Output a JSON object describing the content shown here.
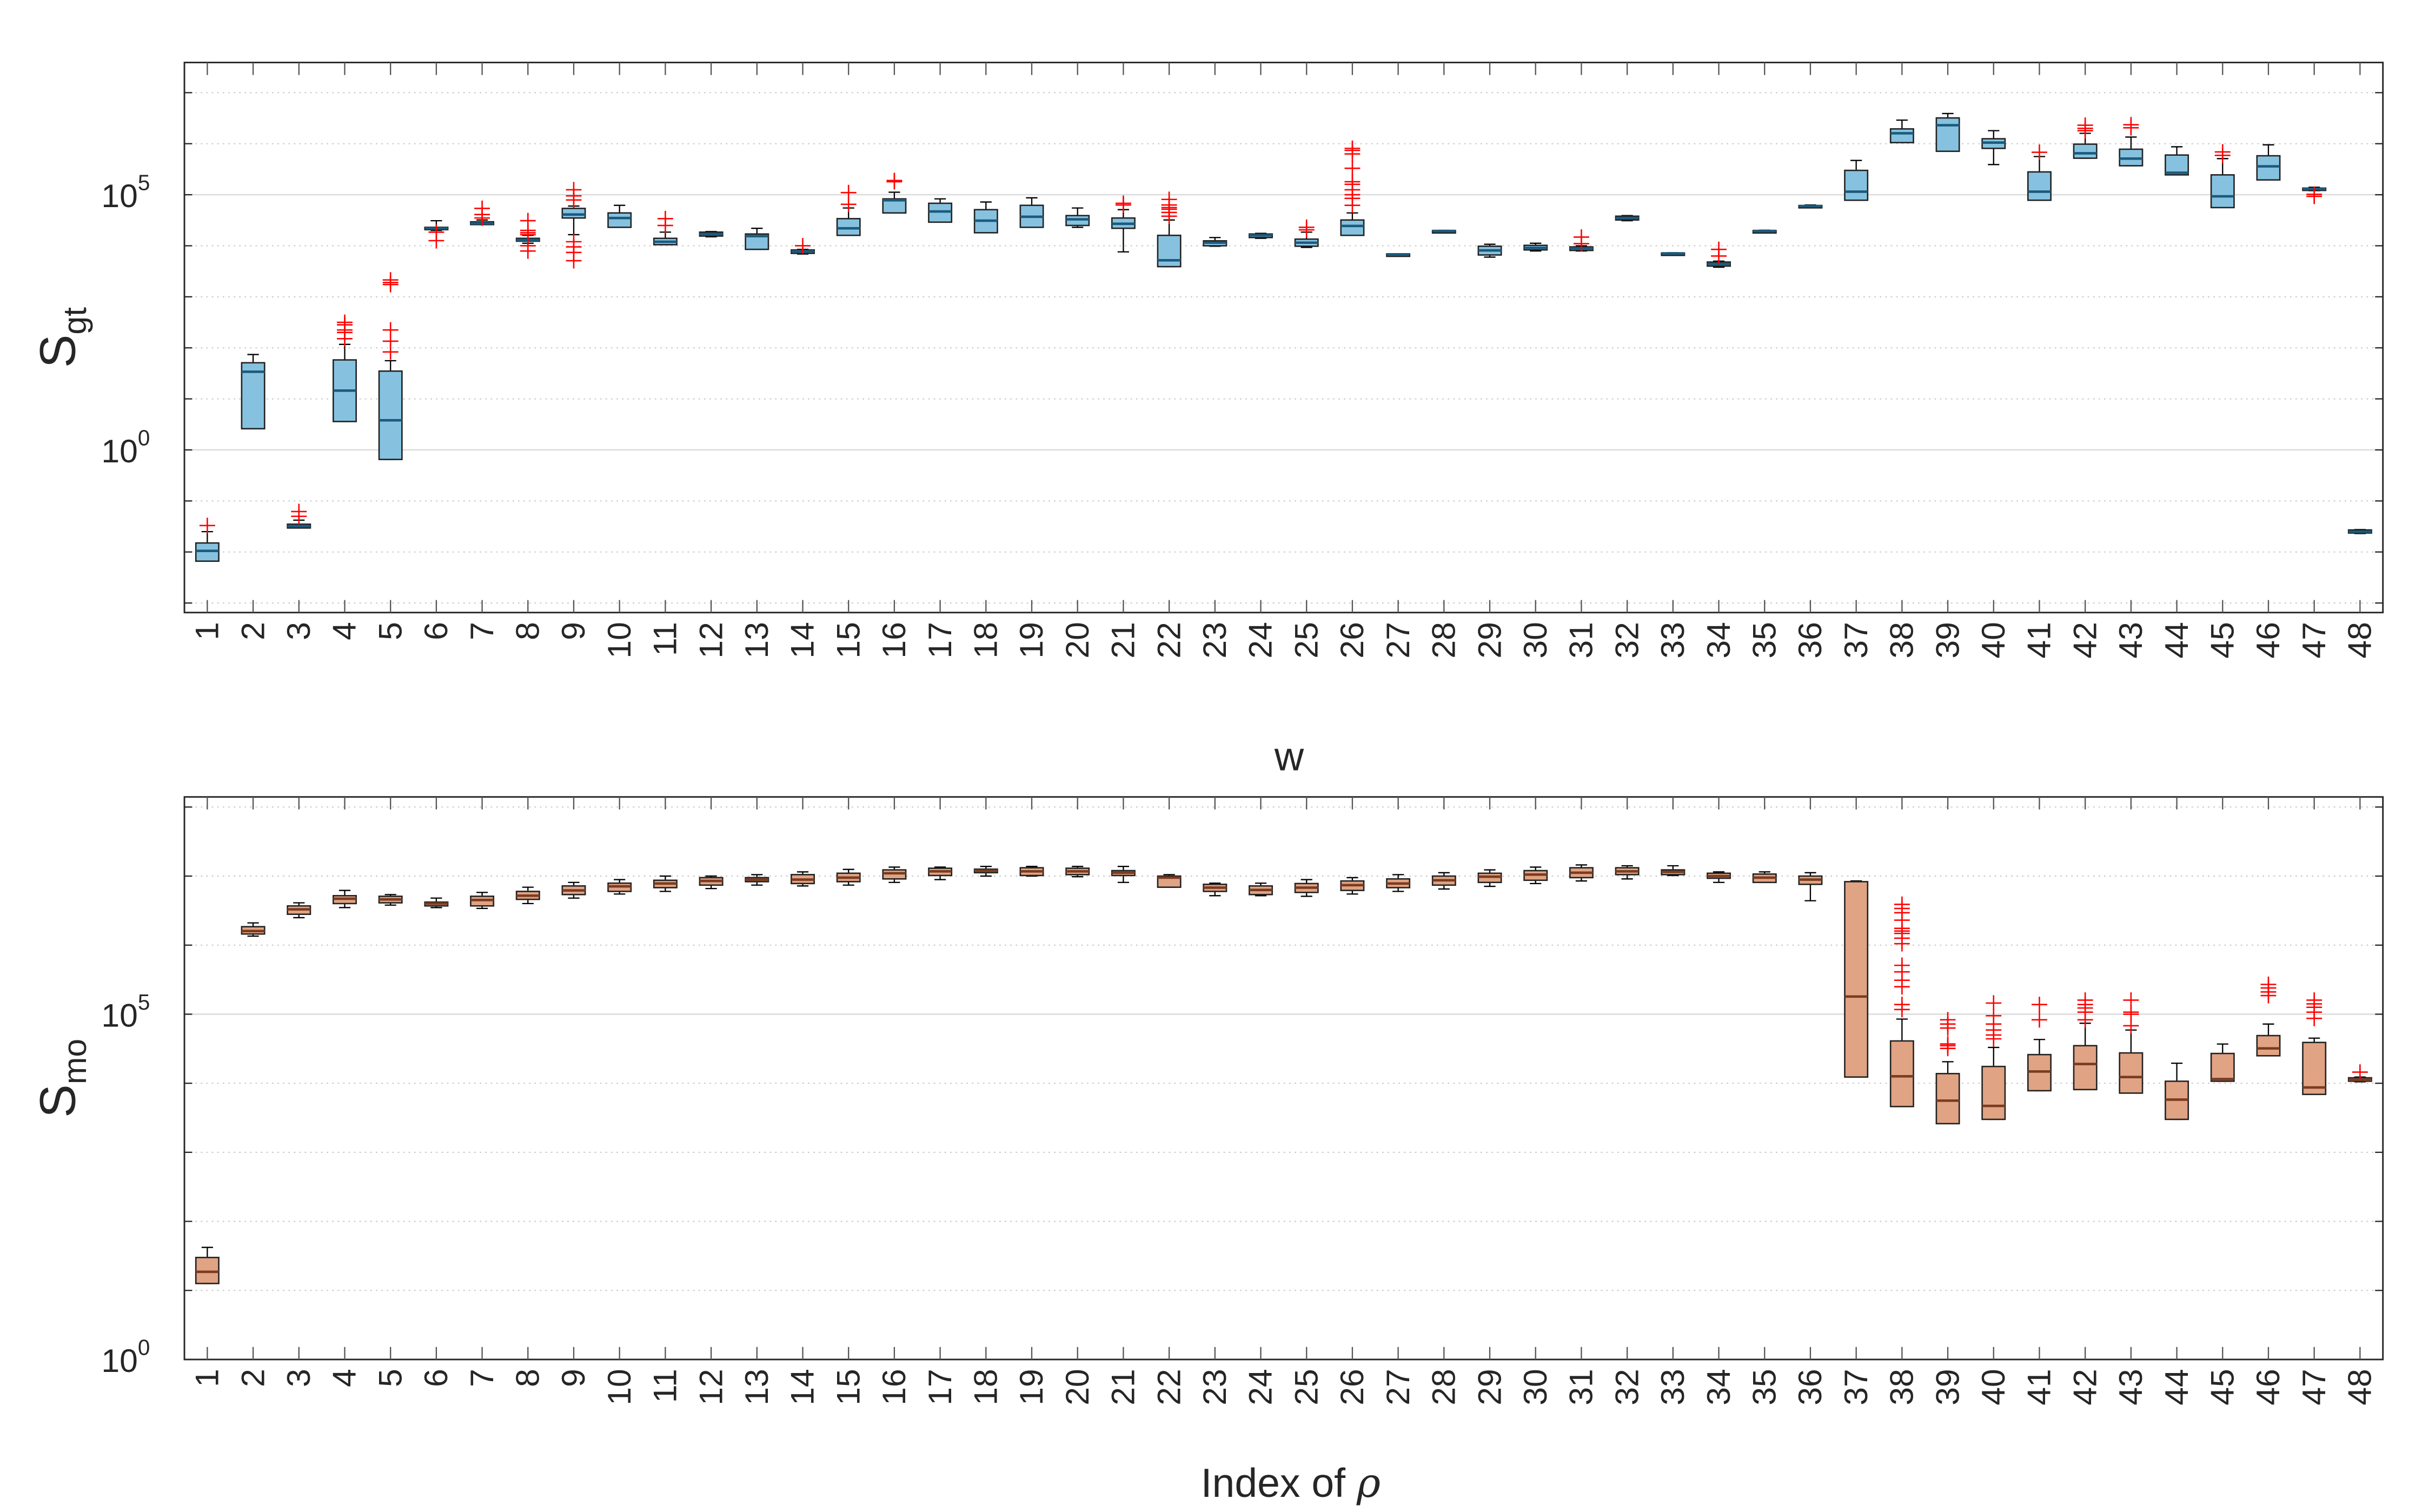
{
  "chart_data": [
    {
      "type": "box",
      "ylabel": {
        "main": "S",
        "sub": "gt"
      },
      "xlabel": {
        "main": "w",
        "italic": ""
      },
      "yscale": "log",
      "ylim": [
        0.00065,
        39000000.0
      ],
      "grid": "every decade; solid at labeled ticks, dotted elsewhere",
      "yticks": [
        {
          "value": 100000.0,
          "base": "10",
          "exp": "5"
        },
        {
          "value": 1,
          "base": "10",
          "exp": "0"
        }
      ],
      "colors": {
        "box": "#86c2e0",
        "median": "#1b5a7c",
        "outlier": "#ff0000",
        "whisker": "#000000"
      },
      "categories": [
        "1",
        "2",
        "3",
        "4",
        "5",
        "6",
        "7",
        "8",
        "9",
        "10",
        "11",
        "12",
        "13",
        "14",
        "15",
        "16",
        "17",
        "18",
        "19",
        "20",
        "21",
        "22",
        "23",
        "24",
        "25",
        "26",
        "27",
        "28",
        "29",
        "30",
        "31",
        "32",
        "33",
        "34",
        "35",
        "36",
        "37",
        "38",
        "39",
        "40",
        "41",
        "42",
        "43",
        "44",
        "45",
        "46",
        "47",
        "48"
      ],
      "stats_order": [
        "whisker_low",
        "q1",
        "median",
        "q3",
        "whisker_high"
      ],
      "boxes": [
        [
          0.0066,
          0.0066,
          0.0105,
          0.015,
          0.025
        ],
        [
          2.6,
          2.6,
          34,
          51,
          74
        ],
        [
          0.0295,
          0.0295,
          0.032,
          0.035,
          0.042
        ],
        [
          3.6,
          3.6,
          14.5,
          58,
          117
        ],
        [
          0.65,
          0.65,
          3.8,
          35,
          56
        ],
        [
          20000.0,
          21000.0,
          22000.0,
          23000.0,
          31000.0
        ],
        [
          26000.0,
          26000.0,
          27500.0,
          29500.0,
          32000.0
        ],
        [
          11200.0,
          12300.0,
          13000.0,
          14000.0,
          16000.0
        ],
        [
          16500.0,
          35000.0,
          41000.0,
          54000.0,
          60000.0
        ],
        [
          23000.0,
          23000.0,
          35000.0,
          44000.0,
          62000.0
        ],
        [
          10500.0,
          10500.0,
          12000.0,
          14000.0,
          18500.0
        ],
        [
          15000.0,
          15500.0,
          17000.0,
          18500.0,
          19000.0
        ],
        [
          8500.0,
          8500.0,
          15500.0,
          17000.0,
          22000.0
        ],
        [
          6900.0,
          7100.0,
          7800.0,
          8300.0,
          8500.0
        ],
        [
          16000.0,
          16000.0,
          22000.0,
          34000.0,
          55000.0
        ],
        [
          44000.0,
          44000.0,
          78000.0,
          83000.0,
          112000.0
        ],
        [
          29000.0,
          29000.0,
          47000.0,
          68000.0,
          83000.0
        ],
        [
          18000.0,
          18000.0,
          31000.0,
          51000.0,
          72000.0
        ],
        [
          23000.0,
          23000.0,
          37000.0,
          62000.0,
          87000.0
        ],
        [
          23000.0,
          25000.0,
          33000.0,
          39000.0,
          55000.0
        ],
        [
          7600.0,
          22000.0,
          27000.0,
          35000.0,
          51000.0
        ],
        [
          3900.0,
          3900.0,
          5200.0,
          16000.0,
          32000.0
        ],
        [
          9800.0,
          10000.0,
          11500.0,
          12500.0,
          14500.0
        ],
        [
          14000.0,
          14500.0,
          16000.0,
          17000.0,
          17500.0
        ],
        [
          9300.0,
          9800.0,
          11500.0,
          13500.0,
          18500.0
        ],
        [
          16000.0,
          16000.0,
          24500.0,
          32000.0,
          44000.0
        ],
        [
          6600.0,
          6700.0,
          6800.0,
          6900.0,
          7000.0
        ],
        [
          19000.0,
          19200.0,
          19500.0,
          19800.0,
          20000.0
        ],
        [
          6000.0,
          6600.0,
          8100.0,
          9800.0,
          10700.0
        ],
        [
          7900.0,
          8300.0,
          9100.0,
          10200.0,
          11200.0
        ],
        [
          7900.0,
          8100.0,
          8900.0,
          9500.0,
          10000.0
        ],
        [
          31000.0,
          32000.0,
          35000.0,
          38000.0,
          39000.0
        ],
        [
          6900.0,
          7000.0,
          7100.0,
          7200.0,
          7300.0
        ],
        [
          3800.0,
          4000.0,
          4400.0,
          4800.0,
          5000.0
        ],
        [
          18800.0,
          19200.0,
          19500.0,
          19800.0,
          20200.0
        ],
        [
          58000.0,
          59000.0,
          60000.0,
          61500.0,
          63000.0
        ],
        [
          78000.0,
          78000.0,
          115000.0,
          300000.0,
          470000.0
        ],
        [
          1050000.0,
          1050000.0,
          1600000.0,
          1950000.0,
          2900000.0
        ],
        [
          710000.0,
          710000.0,
          2300000.0,
          3200000.0,
          3900000.0
        ],
        [
          390000.0,
          810000.0,
          1050000.0,
          1250000.0,
          1800000.0
        ],
        [
          78000.0,
          78000.0,
          115000.0,
          280000.0,
          560000.0
        ],
        [
          520000.0,
          520000.0,
          650000.0,
          980000.0,
          1600000.0
        ],
        [
          370000.0,
          370000.0,
          510000.0,
          780000.0,
          1350000.0
        ],
        [
          245000.0,
          245000.0,
          270000.0,
          600000.0,
          870000.0
        ],
        [
          56000.0,
          56000.0,
          93000.0,
          245000.0,
          510000.0
        ],
        [
          195000.0,
          195000.0,
          360000.0,
          580000.0,
          950000.0
        ],
        [
          120000.0,
          123000.0,
          130000.0,
          135000.0,
          140000.0
        ],
        [
          0.023,
          0.0235,
          0.025,
          0.027,
          0.0275
        ]
      ],
      "outliers": [
        [
          0.033
        ],
        [],
        [
          0.05,
          0.062
        ],
        [
          151,
          200,
          224,
          282,
          316
        ],
        [
          83,
          135,
          224,
          1740,
          1900,
          2140
        ],
        [
          18500.0,
          12600.0
        ],
        [
          35000.0,
          41000.0,
          54000.0
        ],
        [
          16500.0,
          18000.0,
          20000.0,
          31000.0,
          10000.0,
          7900.0
        ],
        [
          79000.0,
          95000.0,
          125000.0,
          12000.0,
          9500.0,
          7400.0,
          5100.0
        ],
        [],
        [
          25000.0,
          34000.0
        ],
        [],
        [],
        [
          10000.0
        ],
        [
          65000.0,
          110000.0
        ],
        [
          180000.0,
          190000.0
        ],
        [],
        [],
        [],
        [],
        [
          63000.0,
          68000.0
        ],
        [
          38000.0,
          45000.0,
          52000.0,
          56000.0,
          63000.0,
          81000.0
        ],
        [],
        [],
        [
          20500.0,
          23000.0
        ],
        [
          62000.0,
          85000.0,
          100000.0,
          125000.0,
          160000.0,
          180000.0,
          330000.0,
          630000.0,
          740000.0,
          810000.0
        ],
        [],
        [],
        [],
        [],
        [
          11000.0,
          14800.0
        ],
        [],
        [],
        [
          6300.0,
          8500.0
        ],
        [],
        [],
        [],
        [],
        [],
        [],
        [
          680000.0
        ],
        [
          1800000.0,
          2000000.0,
          2300000.0
        ],
        [
          2050000.0,
          2350000.0
        ],
        [],
        [
          590000.0,
          690000.0
        ],
        [],
        [
          102000.0,
          93000.0
        ],
        []
      ]
    },
    {
      "type": "box",
      "ylabel": {
        "main": "S",
        "sub": "mo"
      },
      "xlabel": {
        "main": "Index of ",
        "italic": "ρ"
      },
      "yscale": "log",
      "ylim": [
        1,
        140000000.0
      ],
      "grid": "every decade; solid at labeled ticks, dotted elsewhere",
      "yticks": [
        {
          "value": 100000.0,
          "base": "10",
          "exp": "5"
        },
        {
          "value": 1,
          "base": "10",
          "exp": "0"
        }
      ],
      "colors": {
        "box": "#e0a383",
        "median": "#7b3b20",
        "outlier": "#ff0000",
        "whisker": "#000000"
      },
      "categories": [
        "1",
        "2",
        "3",
        "4",
        "5",
        "6",
        "7",
        "8",
        "9",
        "10",
        "11",
        "12",
        "13",
        "14",
        "15",
        "16",
        "17",
        "18",
        "19",
        "20",
        "21",
        "22",
        "23",
        "24",
        "25",
        "26",
        "27",
        "28",
        "29",
        "30",
        "31",
        "32",
        "33",
        "34",
        "35",
        "36",
        "37",
        "38",
        "39",
        "40",
        "41",
        "42",
        "43",
        "44",
        "45",
        "46",
        "47",
        "48"
      ],
      "stats_order": [
        "whisker_low",
        "q1",
        "median",
        "q3",
        "whisker_high"
      ],
      "boxes": [
        [
          12.6,
          12.6,
          18.6,
          30,
          42
        ],
        [
          1350000.0,
          1450000.0,
          1600000.0,
          1850000.0,
          2100000.0
        ],
        [
          2500000.0,
          2800000.0,
          3300000.0,
          3700000.0,
          4100000.0
        ],
        [
          3500000.0,
          4000000.0,
          4700000.0,
          5200000.0,
          6200000.0
        ],
        [
          3800000.0,
          4100000.0,
          4600000.0,
          5100000.0,
          5400000.0
        ],
        [
          3500000.0,
          3700000.0,
          4000000.0,
          4200000.0,
          4800000.0
        ],
        [
          3400000.0,
          3700000.0,
          4500000.0,
          5100000.0,
          5800000.0
        ],
        [
          4000000.0,
          4600000.0,
          5200000.0,
          6000000.0,
          6900000.0
        ],
        [
          4800000.0,
          5400000.0,
          6200000.0,
          7200000.0,
          8100000.0
        ],
        [
          5500000.0,
          6000000.0,
          7100000.0,
          7900000.0,
          8900000.0
        ],
        [
          6000000.0,
          6800000.0,
          7800000.0,
          8700000.0,
          10000000.0
        ],
        [
          6600000.0,
          7400000.0,
          8500000.0,
          9500000.0,
          10000000.0
        ],
        [
          7400000.0,
          8300000.0,
          8900000.0,
          9500000.0,
          10500000.0
        ],
        [
          7200000.0,
          7800000.0,
          8900000.0,
          10500000.0,
          11500000.0
        ],
        [
          7400000.0,
          8300000.0,
          9500000.0,
          11000000.0,
          12500000.0
        ],
        [
          8100000.0,
          9100000.0,
          11000000.0,
          12300000.0,
          13500000.0
        ],
        [
          8900000.0,
          10200000.0,
          11700000.0,
          13000000.0,
          13500000.0
        ],
        [
          10000000.0,
          11200000.0,
          12000000.0,
          12600000.0,
          13800000.0
        ],
        [
          10000000.0,
          10200000.0,
          11700000.0,
          13200000.0,
          13800000.0
        ],
        [
          9800000.0,
          10500000.0,
          11700000.0,
          13000000.0,
          13800000.0
        ],
        [
          8100000.0,
          10200000.0,
          11200000.0,
          12000000.0,
          13800000.0
        ],
        [
          6900000.0,
          6900000.0,
          9500000.0,
          10000000.0,
          10500000.0
        ],
        [
          5200000.0,
          6000000.0,
          6800000.0,
          7600000.0,
          7900000.0
        ],
        [
          5200000.0,
          5400000.0,
          6300000.0,
          7200000.0,
          7900000.0
        ],
        [
          5100000.0,
          5800000.0,
          6800000.0,
          7800000.0,
          8900000.0
        ],
        [
          5500000.0,
          6200000.0,
          7400000.0,
          8500000.0,
          9500000.0
        ],
        [
          6000000.0,
          6800000.0,
          7800000.0,
          9100000.0,
          10500000.0
        ],
        [
          6500000.0,
          7400000.0,
          8700000.0,
          10000000.0,
          11200000.0
        ],
        [
          7100000.0,
          8100000.0,
          9800000.0,
          11000000.0,
          12300000.0
        ],
        [
          7800000.0,
          8700000.0,
          10500000.0,
          12000000.0,
          13500000.0
        ],
        [
          8500000.0,
          9500000.0,
          11200000.0,
          13200000.0,
          14500000.0
        ],
        [
          9100000.0,
          10500000.0,
          11700000.0,
          13200000.0,
          14100000.0
        ],
        [
          10200000.0,
          10500000.0,
          11500000.0,
          12300000.0,
          14100000.0
        ],
        [
          8100000.0,
          9300000.0,
          10000000.0,
          11000000.0,
          11500000.0
        ],
        [
          8100000.0,
          8100000.0,
          9500000.0,
          10700000.0,
          11500000.0
        ],
        [
          4400000.0,
          7600000.0,
          8900000.0,
          10000000.0,
          11200000.0
        ],
        [
          12300.0,
          12300.0,
          180000.0,
          8300000.0,
          8500000.0
        ],
        [
          4600.0,
          4600.0,
          12600.0,
          41000.0,
          85000.0
        ],
        [
          2600.0,
          2600.0,
          5600.0,
          13800.0,
          20500.0
        ],
        [
          3000.0,
          3000.0,
          4700.0,
          17500.0,
          33000.0
        ],
        [
          7800.0,
          7800.0,
          14800.0,
          26000.0,
          43000.0
        ],
        [
          8100.0,
          8100.0,
          19000.0,
          35000.0,
          74000.0
        ],
        [
          7200.0,
          7200.0,
          12300.0,
          27500.0,
          59000.0
        ],
        [
          3000.0,
          3000.0,
          5800.0,
          10700.0,
          19500.0
        ],
        [
          10700.0,
          10700.0,
          11500.0,
          27000.0,
          37000.0
        ],
        [
          25000.0,
          25000.0,
          32000.0,
          49000.0,
          72000.0
        ],
        [
          6900.0,
          6900.0,
          8700.0,
          39000.0,
          45000.0
        ],
        [
          10500.0,
          10700.0,
          11200.0,
          12000.0,
          12300.0
        ]
      ],
      "outliers": [
        [],
        [],
        [],
        [],
        [],
        [],
        [],
        [],
        [],
        [],
        [],
        [],
        [],
        [],
        [],
        [],
        [],
        [],
        [],
        [],
        [],
        [],
        [],
        [],
        [],
        [],
        [],
        [],
        [],
        [],
        [],
        [],
        [],
        [],
        [],
        [],
        [],
        [
          117000.0,
          138000.0,
          250000.0,
          310000.0,
          410000.0,
          510000.0,
          1050000.0,
          1260000.0,
          1480000.0,
          1600000.0,
          1750000.0,
          2300000.0,
          2950000.0,
          3400000.0,
          3900000.0
        ],
        [
          32000.0,
          35000.0,
          37000.0,
          63000.0,
          72000.0,
          83000.0
        ],
        [
          44000.0,
          50000.0,
          59000.0,
          72000.0,
          95000.0,
          145000.0
        ],
        [
          83000.0,
          138000.0
        ],
        [
          83000.0,
          107000.0,
          123000.0,
          138000.0,
          160000.0
        ],
        [
          68000.0,
          100000.0,
          107000.0,
          160000.0
        ],
        [],
        [],
        [
          186000.0,
          210000.0,
          240000.0,
          270000.0
        ],
        [
          87000.0,
          107000.0,
          126000.0,
          141000.0,
          160000.0
        ],
        [
          14500.0
        ]
      ]
    }
  ]
}
